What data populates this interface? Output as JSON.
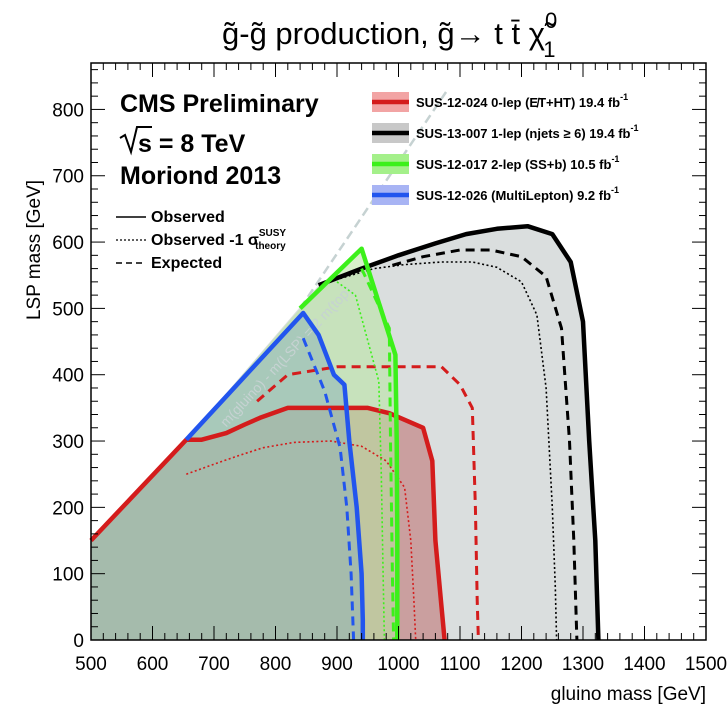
{
  "chart_data": {
    "type": "area",
    "title": "g̃-g̃ production, g̃→ t t̄ χ̃",
    "title_sup": "0",
    "title_sub": "1",
    "xlabel": "gluino mass [GeV]",
    "ylabel": "LSP mass [GeV]",
    "xlim": [
      500,
      1500
    ],
    "ylim": [
      0,
      870
    ],
    "xticks": [
      500,
      600,
      700,
      800,
      900,
      1000,
      1100,
      1200,
      1300,
      1400,
      1500
    ],
    "yticks": [
      0,
      100,
      200,
      300,
      400,
      500,
      600,
      700,
      800
    ],
    "grid": false,
    "experiment": {
      "line1": "CMS Preliminary",
      "line2": "s = 8 TeV",
      "line3": "Moriond 2013"
    },
    "diagonal_label": "m(gluino) - m(LSP) = 2 m(top)",
    "legend_position": "top-right",
    "legend": [
      {
        "text": "SUS-12-024 0-lep (E̸T+HT) 19.4 fb",
        "sup": "-1",
        "color": "#d41c1c",
        "fill": "#f2a4a4"
      },
      {
        "text": "SUS-13-007 1-lep (njets ≥ 6) 19.4 fb",
        "sup": "-1",
        "color": "#000000",
        "fill": "#c8c8c8"
      },
      {
        "text": "SUS-12-017 2-lep (SS+b) 10.5 fb",
        "sup": "-1",
        "color": "#3cf01a",
        "fill": "#a4f08a"
      },
      {
        "text": "SUS-12-026 (MultiLepton) 9.2 fb",
        "sup": "-1",
        "color": "#2255ee",
        "fill": "#a8b4f4"
      }
    ],
    "line_styles": [
      {
        "style": "solid",
        "label": "Observed"
      },
      {
        "style": "dotted",
        "label": "Observed -1 σ",
        "sup": "SUSY",
        "sub": "theory"
      },
      {
        "style": "dashed",
        "label": "Expected"
      }
    ],
    "series": [
      {
        "analysis": "SUS-12-024",
        "color": "#d41c1c",
        "fill": "#c48a8a",
        "observed": [
          [
            500,
            150
          ],
          [
            655,
            302
          ],
          [
            680,
            302
          ],
          [
            720,
            312
          ],
          [
            750,
            325
          ],
          [
            775,
            335
          ],
          [
            820,
            350
          ],
          [
            950,
            350
          ],
          [
            985,
            342
          ],
          [
            1040,
            320
          ],
          [
            1055,
            270
          ],
          [
            1060,
            150
          ],
          [
            1070,
            50
          ],
          [
            1075,
            0
          ]
        ],
        "observed_m1": [
          [
            655,
            250
          ],
          [
            700,
            265
          ],
          [
            740,
            278
          ],
          [
            780,
            290
          ],
          [
            830,
            298
          ],
          [
            890,
            300
          ],
          [
            940,
            292
          ],
          [
            980,
            270
          ],
          [
            1010,
            230
          ],
          [
            1020,
            150
          ],
          [
            1025,
            60
          ],
          [
            1028,
            0
          ]
        ],
        "expected": [
          [
            770,
            360
          ],
          [
            820,
            400
          ],
          [
            900,
            412
          ],
          [
            1070,
            412
          ],
          [
            1100,
            385
          ],
          [
            1120,
            350
          ],
          [
            1125,
            200
          ],
          [
            1128,
            60
          ],
          [
            1130,
            0
          ]
        ]
      },
      {
        "analysis": "SUS-13-007",
        "color": "#000000",
        "fill": "#d4d8d8",
        "observed": [
          [
            870,
            535
          ],
          [
            940,
            560
          ],
          [
            1000,
            580
          ],
          [
            1060,
            598
          ],
          [
            1110,
            612
          ],
          [
            1160,
            620
          ],
          [
            1210,
            624
          ],
          [
            1250,
            612
          ],
          [
            1280,
            570
          ],
          [
            1300,
            480
          ],
          [
            1310,
            300
          ],
          [
            1320,
            150
          ],
          [
            1325,
            0
          ]
        ],
        "observed_m1": [
          [
            905,
            545
          ],
          [
            960,
            560
          ],
          [
            1010,
            566
          ],
          [
            1070,
            570
          ],
          [
            1120,
            570
          ],
          [
            1160,
            562
          ],
          [
            1200,
            540
          ],
          [
            1225,
            490
          ],
          [
            1240,
            380
          ],
          [
            1250,
            200
          ],
          [
            1255,
            80
          ],
          [
            1257,
            0
          ]
        ],
        "expected": [
          [
            990,
            565
          ],
          [
            1040,
            578
          ],
          [
            1100,
            588
          ],
          [
            1150,
            588
          ],
          [
            1200,
            578
          ],
          [
            1240,
            548
          ],
          [
            1265,
            470
          ],
          [
            1278,
            300
          ],
          [
            1285,
            150
          ],
          [
            1290,
            0
          ]
        ]
      },
      {
        "analysis": "SUS-12-017",
        "color": "#3cf01a",
        "fill": "#b8e6a0",
        "observed": [
          [
            840,
            500
          ],
          [
            940,
            590
          ],
          [
            995,
            430
          ],
          [
            997,
            300
          ],
          [
            998,
            150
          ],
          [
            998,
            0
          ]
        ],
        "observed_m1": [
          [
            900,
            540
          ],
          [
            930,
            520
          ],
          [
            968,
            390
          ],
          [
            972,
            250
          ],
          [
            975,
            100
          ],
          [
            977,
            0
          ]
        ],
        "expected": [
          [
            940,
            560
          ],
          [
            985,
            470
          ],
          [
            987,
            300
          ],
          [
            990,
            100
          ],
          [
            992,
            0
          ]
        ]
      },
      {
        "analysis": "SUS-12-026",
        "color": "#2255ee",
        "fill": "#8ab0b8",
        "observed": [
          [
            655,
            302
          ],
          [
            845,
            493
          ],
          [
            870,
            460
          ],
          [
            895,
            400
          ],
          [
            912,
            385
          ],
          [
            920,
            300
          ],
          [
            932,
            200
          ],
          [
            940,
            100
          ],
          [
            942,
            30
          ],
          [
            942,
            0
          ]
        ],
        "expected": [
          [
            845,
            455
          ],
          [
            880,
            375
          ],
          [
            905,
            290
          ],
          [
            916,
            200
          ],
          [
            923,
            100
          ],
          [
            927,
            0
          ]
        ]
      }
    ]
  }
}
